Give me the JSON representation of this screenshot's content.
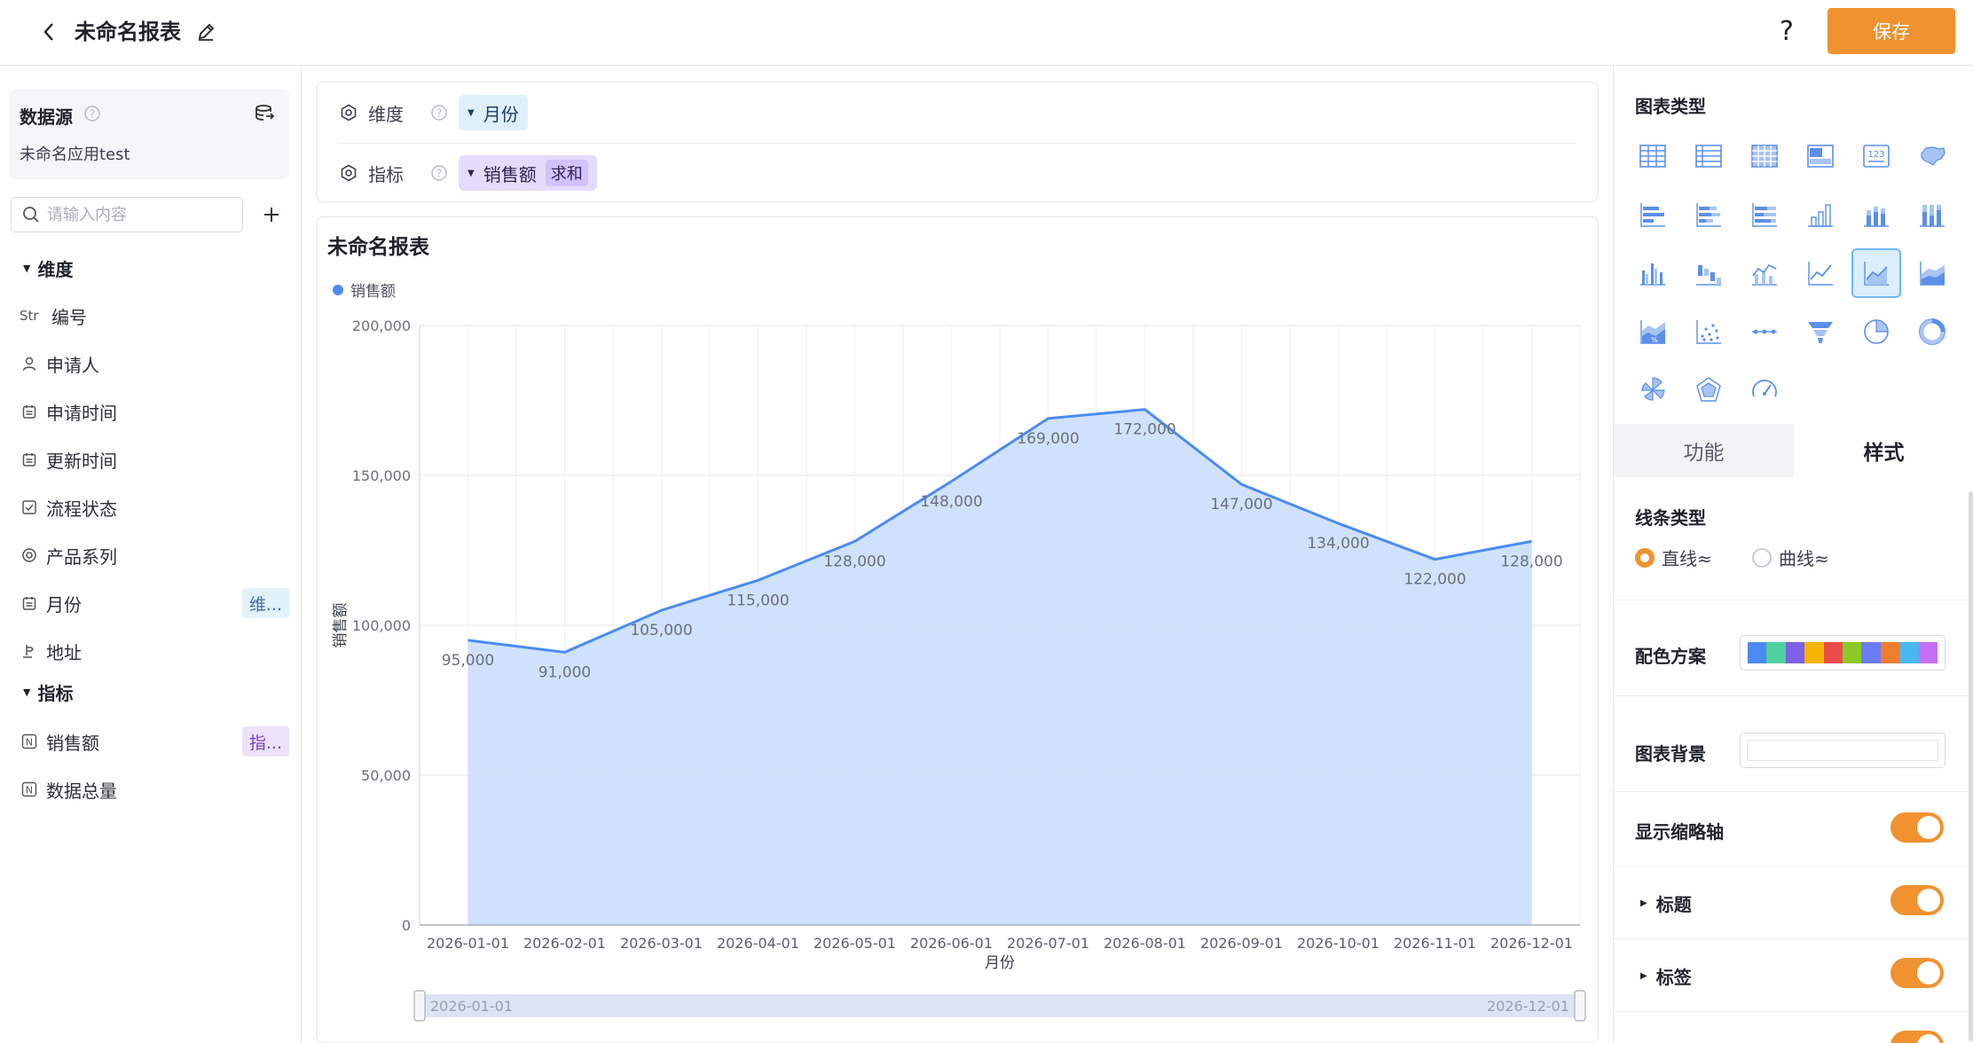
{
  "header": {
    "title": "未命名报表",
    "help": "?",
    "save_label": "保存"
  },
  "datasource": {
    "title": "数据源",
    "app_name": "未命名应用test",
    "search_placeholder": "请输入内容",
    "dimension_section": "维度",
    "indicator_section": "指标",
    "dimensions": [
      {
        "label": "编号",
        "icon": "text-type-icon",
        "icon_text": "Str"
      },
      {
        "label": "申请人",
        "icon": "person-icon"
      },
      {
        "label": "申请时间",
        "icon": "calendar-icon"
      },
      {
        "label": "更新时间",
        "icon": "calendar-icon"
      },
      {
        "label": "流程状态",
        "icon": "checkbox-icon"
      },
      {
        "label": "产品系列",
        "icon": "target-icon"
      },
      {
        "label": "月份",
        "icon": "calendar-icon",
        "tag": "维..."
      },
      {
        "label": "地址",
        "icon": "location-icon"
      }
    ],
    "indicators": [
      {
        "label": "销售额",
        "icon": "number-icon",
        "icon_text": "N",
        "tag": "指..."
      },
      {
        "label": "数据总量",
        "icon": "number-icon",
        "icon_text": "N"
      }
    ]
  },
  "config": {
    "dimension_label": "维度",
    "dimension_value": "月份",
    "indicator_label": "指标",
    "indicator_value": "销售额",
    "indicator_agg": "求和"
  },
  "chart": {
    "title": "未命名报表",
    "legend": "销售额",
    "zoom_start": "2026-01-01",
    "zoom_end": "2026-12-01"
  },
  "chart_data": {
    "type": "area",
    "title": "未命名报表",
    "xlabel": "月份",
    "ylabel": "销售额",
    "ylim": [
      0,
      200000
    ],
    "yticks": [
      "0",
      "50,000",
      "100,000",
      "150,000",
      "200,000"
    ],
    "x": [
      "2026-01-01",
      "2026-02-01",
      "2026-03-01",
      "2026-04-01",
      "2026-05-01",
      "2026-06-01",
      "2026-07-01",
      "2026-08-01",
      "2026-09-01",
      "2026-10-01",
      "2026-11-01",
      "2026-12-01"
    ],
    "series": [
      {
        "name": "销售额",
        "values": [
          95000,
          91000,
          105000,
          115000,
          128000,
          148000,
          169000,
          172000,
          147000,
          134000,
          122000,
          128000
        ],
        "labels": [
          "95,000",
          "91,000",
          "105,000",
          "115,000",
          "128,000",
          "148,000",
          "169,000",
          "172,000",
          "147,000",
          "134,000",
          "122,000",
          "128,000"
        ]
      }
    ],
    "legend_position": "top-left",
    "grid": true,
    "line_color": "#4b8bf4",
    "area_color": "#cde0fb"
  },
  "right_panel": {
    "chart_type_title": "图表类型",
    "chart_types": [
      "table-icon",
      "detail-table-icon",
      "pivot-table-icon",
      "cross-table-icon",
      "kpi-card-icon",
      "map-icon",
      "bar-icon",
      "stacked-bar-icon",
      "percent-bar-icon",
      "column-icon",
      "stacked-column-icon",
      "percent-column-icon",
      "grouped-column-icon",
      "waterfall-icon",
      "combo-icon",
      "line-icon",
      "area-icon",
      "stacked-area-icon",
      "percent-area-icon",
      "scatter-icon",
      "dot-line-icon",
      "funnel-icon",
      "pie-icon",
      "donut-icon",
      "rose-icon",
      "radar-icon",
      "gauge-icon"
    ],
    "active_chart_type": 16,
    "tab_function": "功能",
    "tab_style": "样式",
    "line_type_label": "线条类型",
    "line_straight": "直线≈",
    "line_curve": "曲线≈",
    "color_scheme_label": "配色方案",
    "palette": [
      "#4b8bf4",
      "#4ed0a0",
      "#7b61e6",
      "#f4b400",
      "#ea4c4c",
      "#8ac926",
      "#6a7cf5",
      "#f07d2e",
      "#4ab6f0",
      "#c66ef5"
    ],
    "background_label": "图表背景",
    "show_axis_label": "显示缩略轴",
    "title_label": "标题",
    "tag_label": "标签"
  }
}
